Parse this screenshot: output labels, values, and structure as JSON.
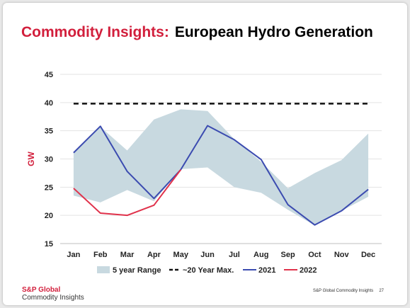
{
  "title": {
    "accent": "Commodity Insights:",
    "rest": "European Hydro Generation"
  },
  "footer": {
    "brand": "S&P Global",
    "sub": "Commodity Insights",
    "source": "S&P Global Commodity Insights",
    "page": "27"
  },
  "colors": {
    "accent": "#d21f3c",
    "band": "#c8d9e0",
    "line2021": "#3b4bb0",
    "line2022": "#e0324b",
    "max": "#111111"
  },
  "chart_data": {
    "type": "line",
    "title": "",
    "xlabel": "",
    "ylabel": "GW",
    "ylim": [
      15,
      45
    ],
    "yticks": [
      "15",
      "20",
      "25",
      "30",
      "35",
      "40",
      "45"
    ],
    "grid": true,
    "legend_position": "bottom",
    "categories": [
      "Jan",
      "Feb",
      "Mar",
      "Apr",
      "May",
      "Jun",
      "Jul",
      "Aug",
      "Sep",
      "Oct",
      "Nov",
      "Dec"
    ],
    "range": {
      "name": "5 year Range",
      "low": [
        23.5,
        22.3,
        24.5,
        22.5,
        28.2,
        28.5,
        25,
        24,
        21,
        18.2,
        20.8,
        23.3
      ],
      "high": [
        31,
        35.7,
        31.5,
        37,
        38.8,
        38.5,
        33.5,
        29.5,
        24.8,
        27.5,
        29.8,
        34.5
      ]
    },
    "max_line": {
      "name": "~20 Year Max.",
      "value": 39.8
    },
    "series": [
      {
        "name": "2021",
        "values": [
          31.1,
          35.8,
          27.8,
          23,
          28.1,
          35.9,
          33.4,
          29.9,
          21.9,
          18.3,
          20.8,
          24.6
        ]
      },
      {
        "name": "2022",
        "values": [
          24.8,
          20.4,
          20,
          21.8,
          28.1,
          null,
          null,
          null,
          null,
          null,
          null,
          null
        ]
      }
    ]
  }
}
